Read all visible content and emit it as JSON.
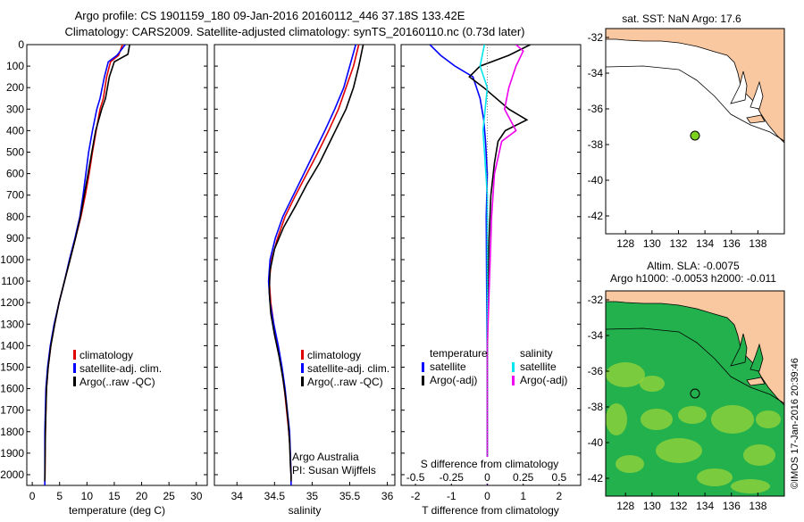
{
  "header": {
    "line1": "Argo profile: CS 1901159_180 09-Jan-2016 20160112_446 37.18S 133.42E",
    "line2": "Climatology: CARS2009. Satellite-adjusted climatology: synTS_20160110.nc (0.73d later)"
  },
  "colors": {
    "climatology": "#e00000",
    "satellite": "#0000ff",
    "argo": "#000000",
    "satellite_salinity": "#00e5ee",
    "argo_salinity": "#ee00ee",
    "land": "#f9c7a0",
    "ocean_sla": "#22b14c",
    "float_marker": "#7cd11e"
  },
  "chart_data": [
    {
      "id": "temperature",
      "type": "line",
      "xlabel": "temperature (deg C)",
      "xlim": [
        -1,
        32
      ],
      "xticks": [
        0,
        5,
        10,
        15,
        20,
        25,
        30
      ],
      "ylim": [
        0,
        2050
      ],
      "yticks": [
        0,
        100,
        200,
        300,
        400,
        500,
        600,
        700,
        800,
        900,
        1000,
        1100,
        1200,
        1300,
        1400,
        1500,
        1600,
        1700,
        1800,
        1900,
        2000
      ],
      "legend": {
        "position": "lower-right",
        "entries": [
          "climatology",
          "satellite-adj. clim.",
          "Argo(..raw -QC)"
        ]
      },
      "series": [
        {
          "name": "climatology",
          "color": "#e00000",
          "x": [
            16.5,
            15.8,
            14.3,
            13.6,
            13.0,
            12.4,
            11.7,
            11.0,
            10.4,
            9.7,
            8.9,
            7.9,
            6.9,
            5.9,
            4.9,
            4.1,
            3.4,
            2.9,
            2.6,
            2.5,
            2.4,
            2.3
          ],
          "y": [
            0,
            50,
            80,
            150,
            250,
            300,
            400,
            500,
            600,
            700,
            800,
            900,
            1000,
            1100,
            1200,
            1300,
            1400,
            1500,
            1600,
            1700,
            1800,
            2050
          ]
        },
        {
          "name": "satellite-adj. clim.",
          "color": "#0000ff",
          "x": [
            17.0,
            15.5,
            13.9,
            13.2,
            12.4,
            11.8,
            11.0,
            10.3,
            9.8,
            9.3,
            8.7,
            7.8,
            6.8,
            5.9,
            4.9,
            4.0,
            3.3,
            2.8,
            2.5,
            2.4,
            2.3,
            2.3
          ],
          "y": [
            0,
            50,
            80,
            150,
            250,
            300,
            400,
            500,
            600,
            700,
            800,
            900,
            1000,
            1100,
            1200,
            1300,
            1400,
            1500,
            1600,
            1700,
            1800,
            2050
          ]
        },
        {
          "name": "Argo(..raw -QC)",
          "color": "#000000",
          "x": [
            17.8,
            17.5,
            15.0,
            14.1,
            13.4,
            12.7,
            11.6,
            10.9,
            10.2,
            9.5,
            8.8,
            7.9,
            6.9,
            5.9,
            4.9,
            4.1,
            3.4,
            2.9,
            2.6,
            2.5,
            2.4,
            2.3
          ],
          "y": [
            0,
            45,
            80,
            150,
            250,
            300,
            400,
            500,
            600,
            700,
            800,
            900,
            1000,
            1100,
            1200,
            1300,
            1400,
            1500,
            1600,
            1700,
            1800,
            2030
          ]
        }
      ]
    },
    {
      "id": "salinity",
      "type": "line",
      "xlabel": "salinity",
      "xlim": [
        33.7,
        36.1
      ],
      "xticks": [
        34,
        34.5,
        35,
        35.5,
        36
      ],
      "ylim": [
        0,
        2050
      ],
      "legend": {
        "position": "lower-right",
        "entries": [
          "climatology",
          "satellite-adj. clim.",
          "Argo(..raw -QC)"
        ]
      },
      "annotation": [
        "Argo Australia",
        "PI: Susan Wijffels"
      ],
      "series": [
        {
          "name": "climatology",
          "color": "#e00000",
          "x": [
            35.62,
            35.55,
            35.45,
            35.35,
            35.22,
            35.08,
            34.93,
            34.78,
            34.64,
            34.54,
            34.46,
            34.43,
            34.45,
            34.49,
            34.54,
            34.59,
            34.63,
            34.66,
            34.69,
            34.71,
            34.72,
            34.72
          ],
          "y": [
            0,
            100,
            200,
            300,
            400,
            500,
            600,
            700,
            800,
            900,
            1000,
            1100,
            1200,
            1300,
            1400,
            1500,
            1600,
            1700,
            1800,
            1900,
            2000,
            2050
          ]
        },
        {
          "name": "satellite-adj. clim.",
          "color": "#0000ff",
          "x": [
            35.58,
            35.5,
            35.42,
            35.3,
            35.17,
            35.03,
            34.89,
            34.75,
            34.61,
            34.51,
            34.44,
            34.42,
            34.44,
            34.49,
            34.55,
            34.6,
            34.64,
            34.67,
            34.7,
            34.71,
            34.72,
            34.72
          ],
          "y": [
            0,
            100,
            200,
            300,
            400,
            500,
            600,
            700,
            800,
            900,
            1000,
            1100,
            1200,
            1300,
            1400,
            1500,
            1600,
            1700,
            1800,
            1900,
            2000,
            2050
          ]
        },
        {
          "name": "Argo(..raw -QC)",
          "color": "#000000",
          "x": [
            35.68,
            35.62,
            35.55,
            35.45,
            35.38,
            35.24,
            35.1,
            34.93,
            34.78,
            34.62,
            34.5,
            34.44,
            34.43,
            34.45,
            34.5,
            34.56,
            34.61,
            34.65,
            34.68,
            34.7,
            34.71,
            34.72,
            34.72
          ],
          "y": [
            0,
            100,
            200,
            300,
            350,
            450,
            550,
            650,
            750,
            850,
            950,
            1050,
            1150,
            1250,
            1350,
            1450,
            1550,
            1650,
            1750,
            1850,
            1950,
            2000,
            2030
          ]
        }
      ]
    },
    {
      "id": "difference",
      "type": "line",
      "xlabel": "T difference from climatology",
      "top_label": "S difference from climatology",
      "xlim": [
        -2.4,
        2.6
      ],
      "xticks": [
        -2,
        -1,
        0,
        1,
        2
      ],
      "top_xticks": [
        -0.5,
        -0.25,
        0,
        0.25,
        0.5
      ],
      "ylim": [
        0,
        2050
      ],
      "legend": {
        "position": "lower-center",
        "temperature_header": "temperature",
        "salinity_header": "salinity",
        "entries": [
          "satellite",
          "Argo(-adj)",
          "satellite",
          "Argo(-adj)"
        ]
      },
      "series": [
        {
          "name": "satellite",
          "group": "temperature",
          "color": "#0000ff",
          "x": [
            -1.6,
            -1.3,
            -0.9,
            -0.4,
            -0.2,
            -0.1,
            -0.05,
            0.0,
            -0.03,
            -0.02,
            0.0,
            0.0
          ],
          "y": [
            0,
            50,
            100,
            150,
            250,
            350,
            450,
            600,
            800,
            1100,
            1500,
            2050
          ]
        },
        {
          "name": "Argo(-adj)",
          "group": "temperature",
          "color": "#000000",
          "x": [
            1.2,
            0.6,
            -0.2,
            -0.5,
            -0.1,
            0.6,
            1.1,
            0.5,
            0.3,
            0.2,
            0.1,
            0.05,
            0.02,
            0.0,
            0.0
          ],
          "y": [
            0,
            50,
            100,
            150,
            200,
            300,
            350,
            400,
            450,
            550,
            700,
            900,
            1100,
            1500,
            2050
          ]
        },
        {
          "name": "satellite",
          "group": "salinity",
          "color": "#00e5ee",
          "x": [
            -0.02,
            -0.05,
            0.0,
            -0.03,
            0.0,
            0.0,
            0.0
          ],
          "y": [
            0,
            100,
            200,
            400,
            700,
            1200,
            2050
          ]
        },
        {
          "name": "Argo(-adj)",
          "group": "salinity",
          "color": "#ee00ee",
          "x": [
            0.2,
            0.25,
            0.2,
            0.15,
            0.12,
            0.2,
            0.1,
            0.05,
            0.03,
            0.02,
            0.0,
            0.0
          ],
          "y": [
            0,
            30,
            100,
            200,
            300,
            400,
            450,
            600,
            800,
            1000,
            1400,
            2050
          ]
        }
      ]
    }
  ],
  "maps": [
    {
      "id": "sst-map",
      "title": "sat. SST: NaN Argo: 17.6",
      "lon_range": [
        126.5,
        140
      ],
      "lat_range": [
        -43,
        -31.5
      ],
      "xticks": [
        128,
        130,
        132,
        134,
        136,
        138
      ],
      "yticks": [
        -32,
        -34,
        -36,
        -38,
        -40,
        -42
      ],
      "float_position": {
        "lon": 133.42,
        "lat": -37.18
      }
    },
    {
      "id": "sla-map",
      "title_line1": "Altim. SLA: -0.0075",
      "title_line2": "Argo h1000: -0.0053 h2000: -0.011",
      "lon_range": [
        126.5,
        140
      ],
      "lat_range": [
        -43,
        -31.5
      ],
      "xticks": [
        128,
        130,
        132,
        134,
        136,
        138
      ],
      "yticks": [
        -32,
        -34,
        -36,
        -38,
        -40,
        -42
      ],
      "float_position": {
        "lon": 133.42,
        "lat": -37.18
      }
    }
  ],
  "credit": "©IMOS 17-Jan-2016 20:39:46"
}
